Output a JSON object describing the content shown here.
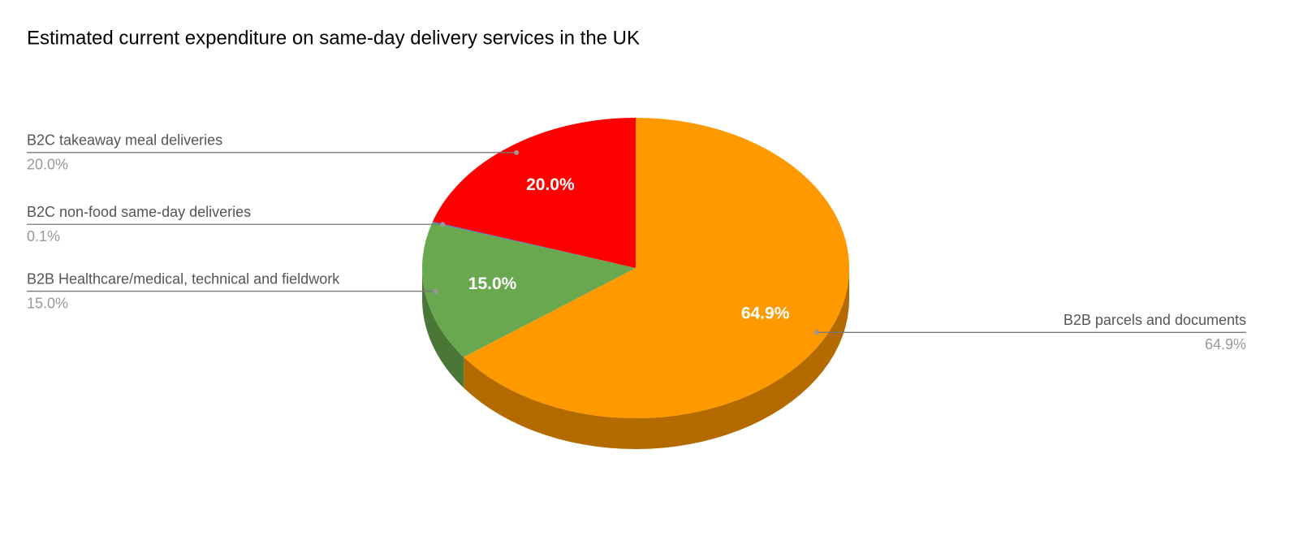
{
  "chart_data": {
    "type": "pie3d",
    "title": "Estimated current expenditure on same-day delivery services in the UK",
    "categories": [
      "B2B parcels and documents",
      "B2B Healthcare/medical, technical and fieldwork",
      "B2C non-food same-day deliveries",
      "B2C takeaway meal deliveries"
    ],
    "values": [
      64.9,
      15.0,
      0.1,
      20.0
    ],
    "value_labels": [
      "64.9%",
      "15.0%",
      "0.1%",
      "20.0%"
    ],
    "colors": [
      "#ff9900",
      "#6aa84f",
      "#3c78d8",
      "#ff0000"
    ]
  }
}
